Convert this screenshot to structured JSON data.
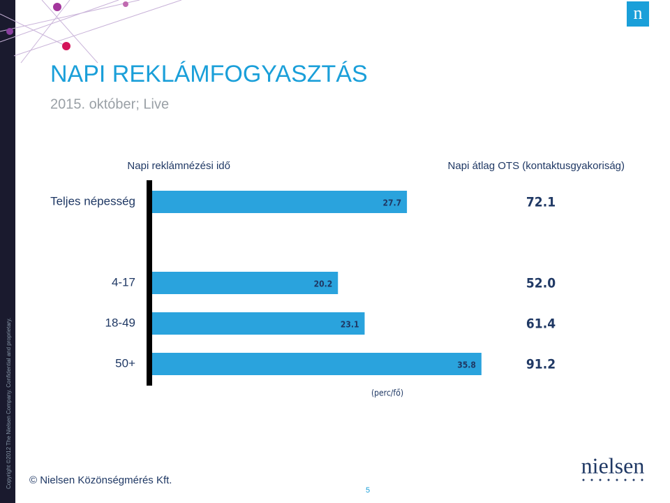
{
  "header": {
    "title": "NAPI REKLÁMFOGYASZTÁS",
    "subtitle": "2015. október; Live",
    "logo_letter": "n"
  },
  "chart_data": {
    "type": "bar",
    "categories": [
      "Teljes népesség",
      "4-17",
      "18-49",
      "50+"
    ],
    "series": [
      {
        "name": "Napi reklámnézési idő",
        "color": "#2aa3dd",
        "values": [
          27.7,
          20.2,
          23.1,
          35.8
        ]
      },
      {
        "name": "Napi átlag OTS (kontaktusgyakoriság)",
        "color": "#1f3864",
        "values": [
          72.1,
          52.0,
          61.4,
          91.2
        ],
        "value_labels": [
          "72.1",
          "52.0",
          "61.4",
          "91.2"
        ]
      }
    ],
    "unit_label": "(perc/fő)"
  },
  "footer": {
    "company": "© Nielsen Közönségmérés Kft.",
    "page": "5",
    "side_note": "Copyright ©2012 The Nielsen Company. Confidential and proprietary.",
    "logo": "nielsen"
  }
}
